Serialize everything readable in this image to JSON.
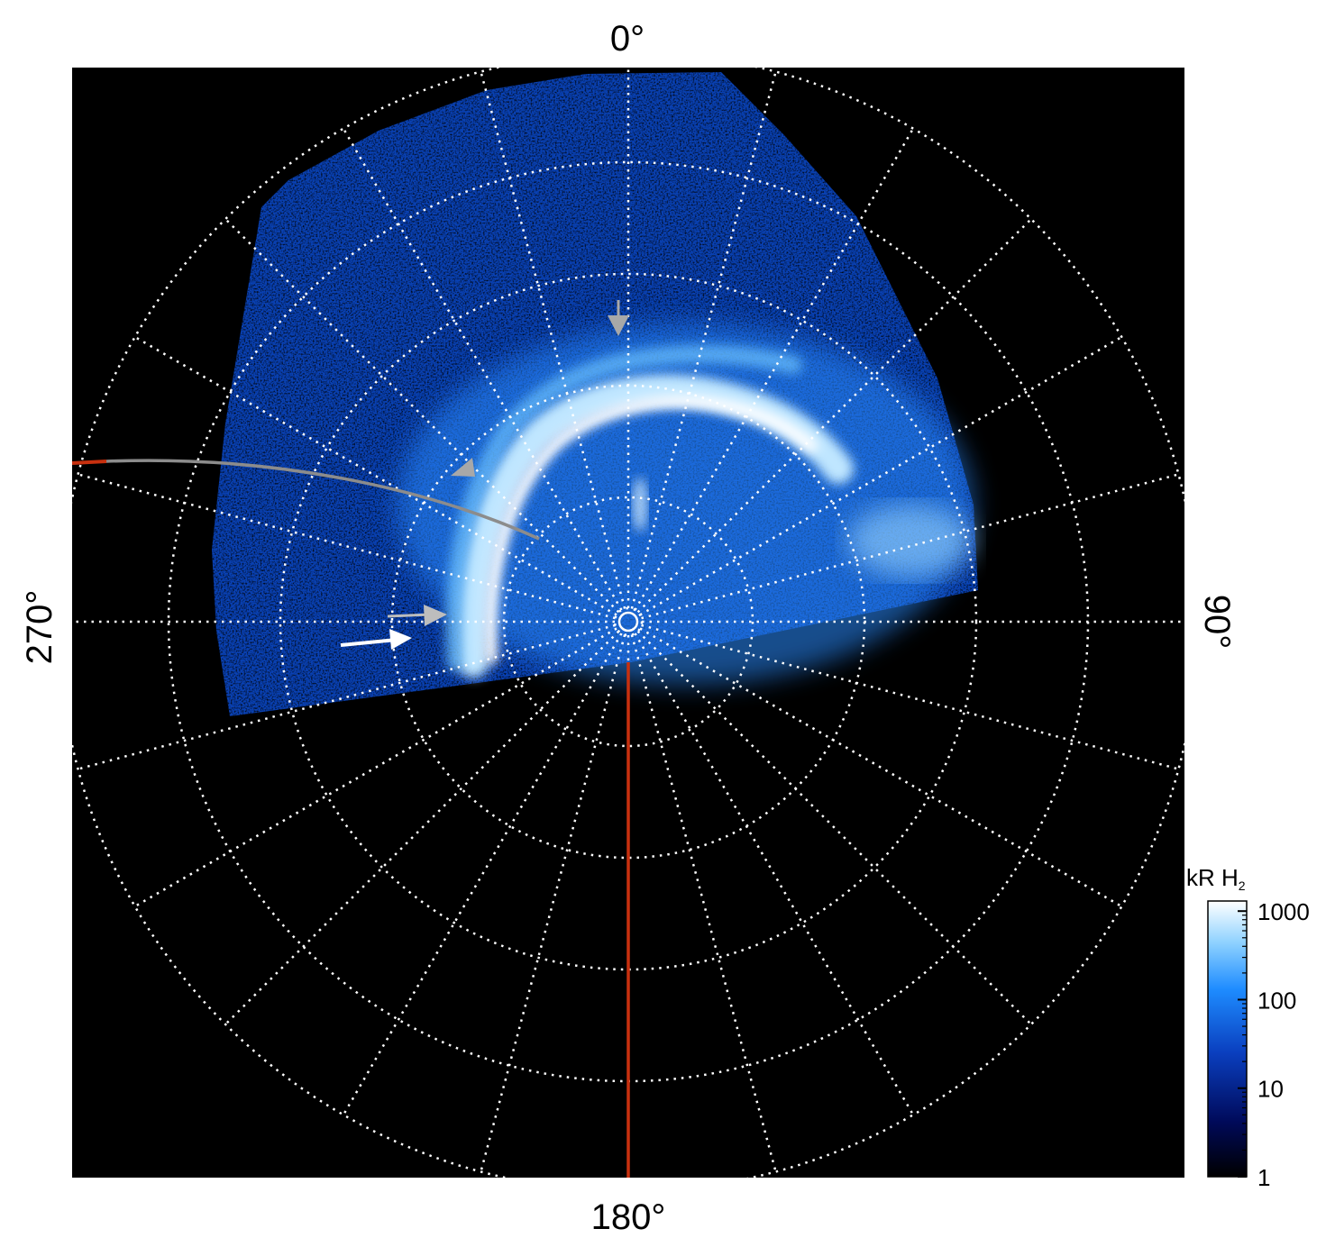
{
  "labels": {
    "top": "0°",
    "bottom": "180°",
    "left": "270°",
    "right": "90°"
  },
  "colorbar": {
    "title_main": "kR H",
    "title_sub": "2",
    "ticks": [
      {
        "label": "1000",
        "value": 1000
      },
      {
        "label": "100",
        "value": 100
      },
      {
        "label": "10",
        "value": 10
      },
      {
        "label": "1",
        "value": 1
      }
    ],
    "range": [
      1,
      1300
    ],
    "scale": "log",
    "colors": [
      "#000000",
      "#000a5a",
      "#0a3fbf",
      "#1e8cff",
      "#8fd2ff",
      "#ffffff"
    ]
  },
  "colors": {
    "background": "#000000",
    "grid": "#ffffff",
    "meridian_line": "#c8300f",
    "trajectory": "#8c8c8c",
    "arrow_white": "#ffffff",
    "arrow_gray": "#a8a8a8"
  }
}
